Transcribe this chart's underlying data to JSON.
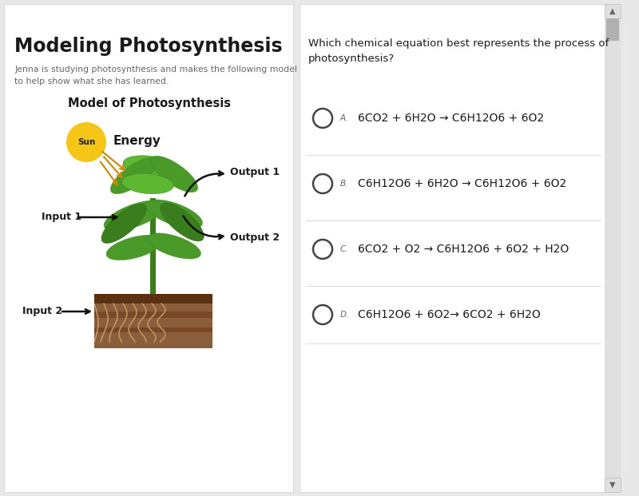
{
  "title": "Modeling Photosynthesis",
  "subtitle": "Jenna is studying photosynthesis and makes the following model\nto help show what she has learned.",
  "diagram_title": "Model of Photosynthesis",
  "question": "Which chemical equation best represents the process of\nphotosynthesis?",
  "options": [
    {
      "label": "A.",
      "text": "6CO2 + 6H2O → C6H12O6 + 6O2"
    },
    {
      "label": "B.",
      "text": "C6H12O6 + 6H2O → C6H12O6 + 6O2"
    },
    {
      "label": "C.",
      "text": "6CO2 + O2 → C6H12O6 + 6O2 + H2O"
    },
    {
      "label": "D.",
      "text": "C6H12O6 + 6O2→ 6CO2 + 6H2O"
    }
  ],
  "bg_color": "#e8e8e8",
  "left_bg": "#ffffff",
  "right_bg": "#ffffff",
  "divider_color": "#cccccc",
  "text_color": "#1a1a1a",
  "gray_text": "#666666",
  "option_divider": "#dddddd",
  "circle_color": "#444444",
  "sun_color": "#f5c518",
  "arrow_color": "#cc8800",
  "black_arrow": "#111111",
  "plant_green_dark": "#3a7d1e",
  "plant_green_mid": "#4a9a2a",
  "plant_green_light": "#5cb830",
  "soil_brown": "#8B5E3C",
  "soil_dark": "#5a3010",
  "soil_stripe1": "#7a4828",
  "root_color": "#c8a060",
  "scrollbar_bg": "#e0e0e0",
  "scrollbar_thumb": "#b0b0b0"
}
